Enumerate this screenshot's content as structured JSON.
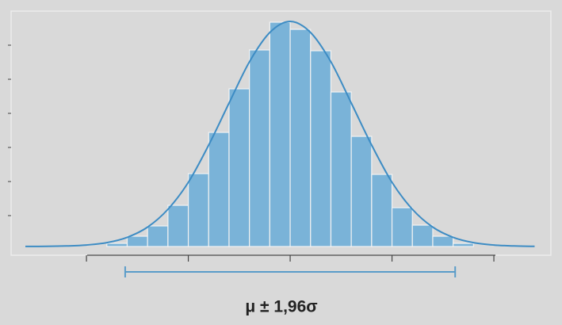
{
  "chart_data": {
    "type": "histogram",
    "bins": [
      -9,
      -8,
      -7,
      -6,
      -5,
      -4,
      -3,
      -2,
      -1,
      0,
      1,
      2,
      3,
      4,
      5,
      6,
      7,
      8,
      9
    ],
    "values": [
      4,
      13,
      26,
      52,
      92,
      144,
      199,
      248,
      283,
      274,
      247,
      195,
      139,
      91,
      49,
      27,
      13,
      4
    ],
    "color": "#7ab3d8",
    "curve": {
      "x": [
        -13,
        -12,
        -11,
        -10,
        -9,
        -8,
        -7,
        -6,
        -5,
        -4,
        -3,
        -2,
        -1,
        0,
        1,
        2,
        3,
        4,
        5,
        6,
        7,
        8,
        9,
        10,
        11,
        12
      ],
      "values": [
        0.1,
        0.2,
        0.7,
        1.9,
        4.9,
        11.6,
        24.5,
        47,
        81,
        128,
        181,
        233,
        270,
        284,
        270,
        233,
        181,
        128,
        81,
        47,
        24.5,
        11.6,
        4.9,
        1.9,
        0.7,
        0.2
      ],
      "color": "#3d8cc4"
    },
    "interval": {
      "values": [
        -8.1,
        8.1
      ],
      "color": "#5a9cc9",
      "label": "μ  ± 1,96σ"
    },
    "xlim": [
      -13.7,
      12.8
    ],
    "ylim": [
      0,
      297
    ],
    "xticks": [
      -10,
      -5,
      0,
      5,
      10
    ],
    "yticks": [
      39,
      82,
      125,
      168,
      211,
      254
    ]
  }
}
